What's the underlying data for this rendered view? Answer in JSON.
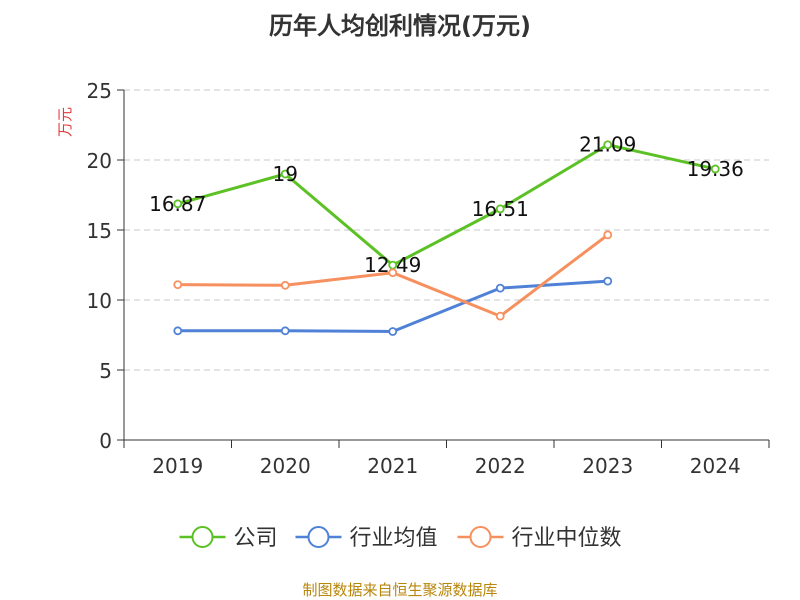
{
  "title": "历年人均创利情况(万元)",
  "source": "制图数据来自恒生聚源数据库",
  "chart_data": {
    "type": "line",
    "title": "历年人均创利情况(万元)",
    "ylabel": "万元",
    "xlabel": "",
    "categories": [
      "2019",
      "2020",
      "2021",
      "2022",
      "2023",
      "2024"
    ],
    "ylim": [
      0,
      25
    ],
    "yticks": [
      "0",
      "5",
      "10",
      "15",
      "20",
      "25"
    ],
    "grid": "horizontal-dashed",
    "legend_position": "bottom",
    "series": [
      {
        "name": "公司",
        "color": "#5cc125",
        "values": [
          16.87,
          19,
          12.49,
          16.51,
          21.09,
          19.36
        ],
        "data_labels": [
          "16.87",
          "19",
          "12.49",
          "16.51",
          "21.09",
          "19.36"
        ]
      },
      {
        "name": "行业均值",
        "color": "#4f81d6",
        "values": [
          7.8,
          7.8,
          7.75,
          10.85,
          11.35,
          null
        ]
      },
      {
        "name": "行业中位数",
        "color": "#f6905f",
        "values": [
          11.1,
          11.05,
          11.95,
          8.85,
          14.65,
          null
        ]
      }
    ]
  }
}
